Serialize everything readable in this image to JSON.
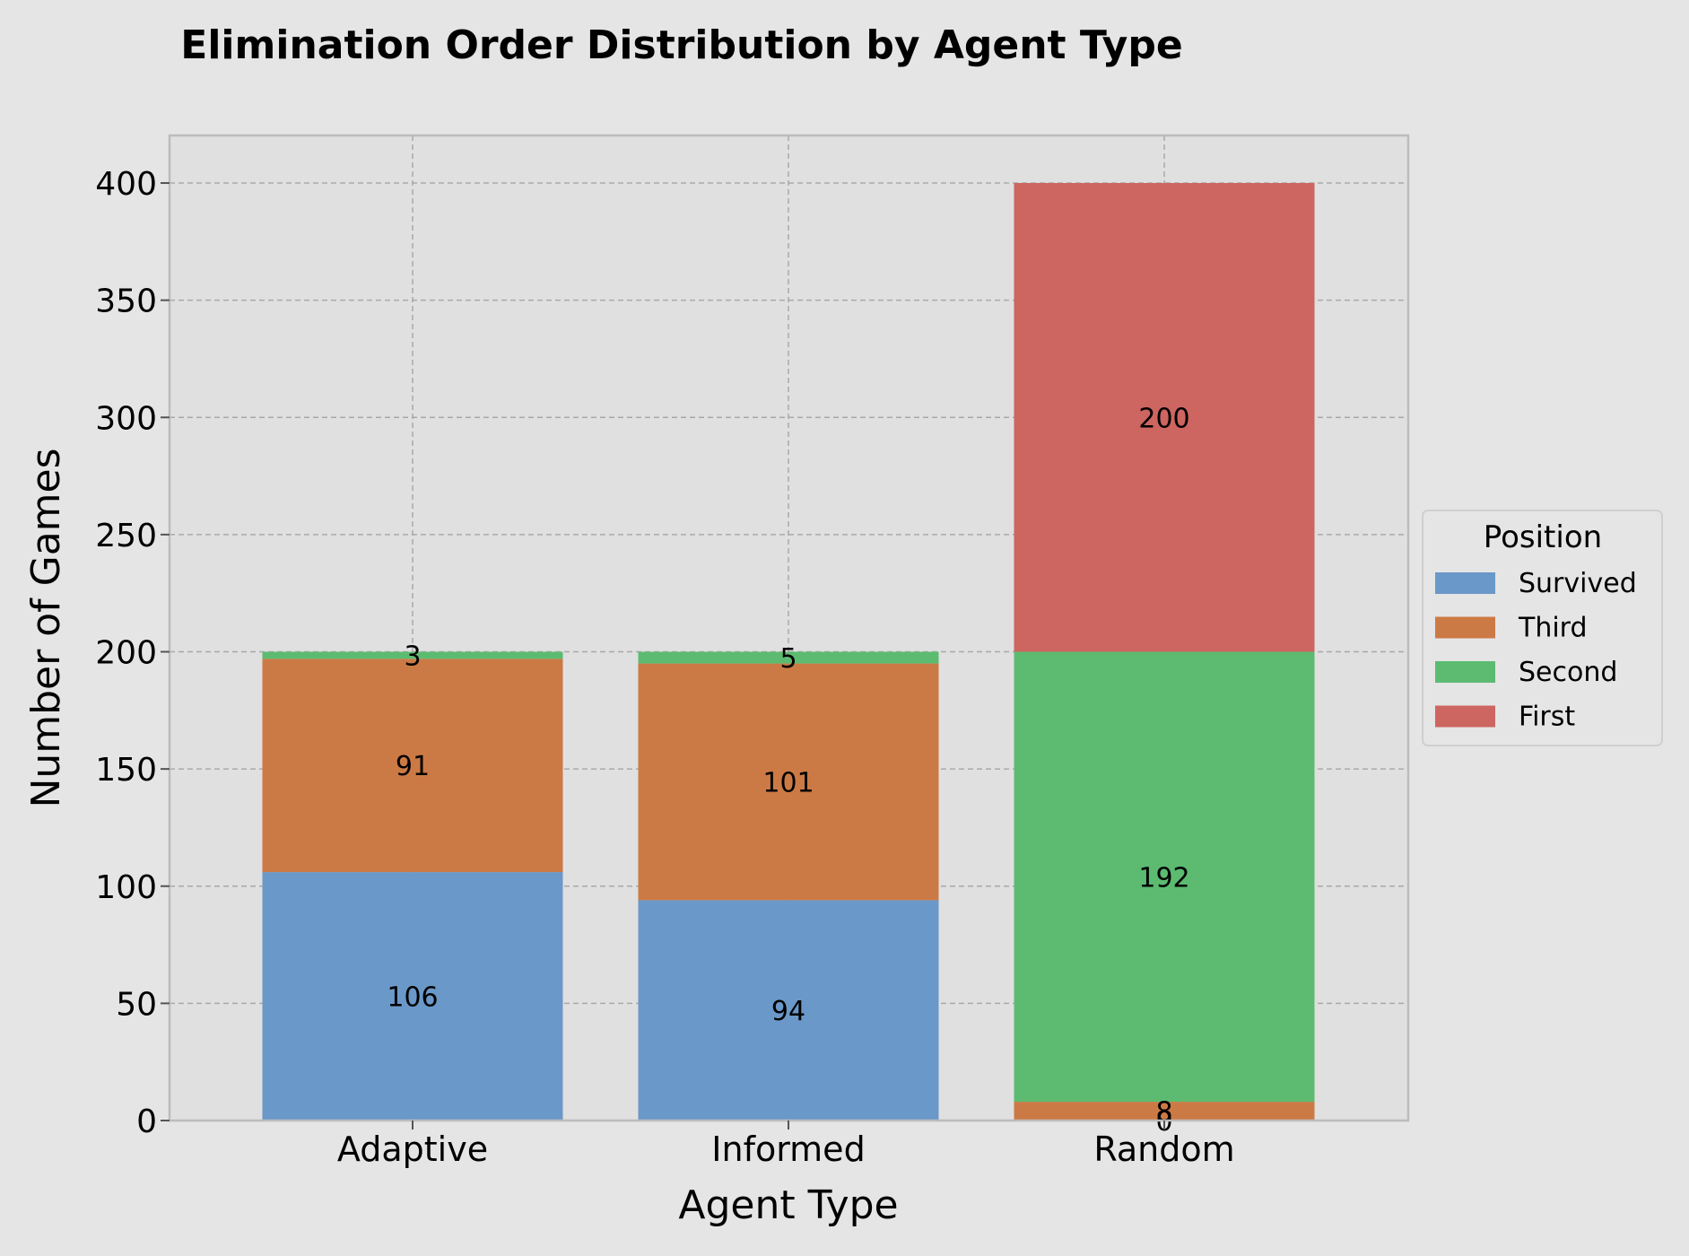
{
  "chart_data": {
    "type": "bar",
    "stacked": true,
    "title": "Elimination Order Distribution by Agent Type",
    "xlabel": "Agent Type",
    "ylabel": "Number of Games",
    "categories": [
      "Adaptive",
      "Informed",
      "Random"
    ],
    "ylim": [
      0,
      420
    ],
    "yticks": [
      0,
      50,
      100,
      150,
      200,
      250,
      300,
      350,
      400
    ],
    "grid": true,
    "legend": {
      "title": "Position",
      "placement": "outside-right"
    },
    "series": [
      {
        "name": "Survived",
        "color": "#6a98c8",
        "values": [
          106,
          94,
          0
        ]
      },
      {
        "name": "Third",
        "color": "#cc7a45",
        "values": [
          91,
          101,
          8
        ]
      },
      {
        "name": "Second",
        "color": "#5cbb70",
        "values": [
          3,
          5,
          192
        ]
      },
      {
        "name": "First",
        "color": "#cd6560",
        "values": [
          0,
          0,
          200
        ]
      }
    ],
    "colors": {
      "background": "#e5e5e5",
      "plot_background": "#e0e0e0",
      "grid": "#a9a9a9",
      "axes": "#bcbcbc"
    }
  }
}
